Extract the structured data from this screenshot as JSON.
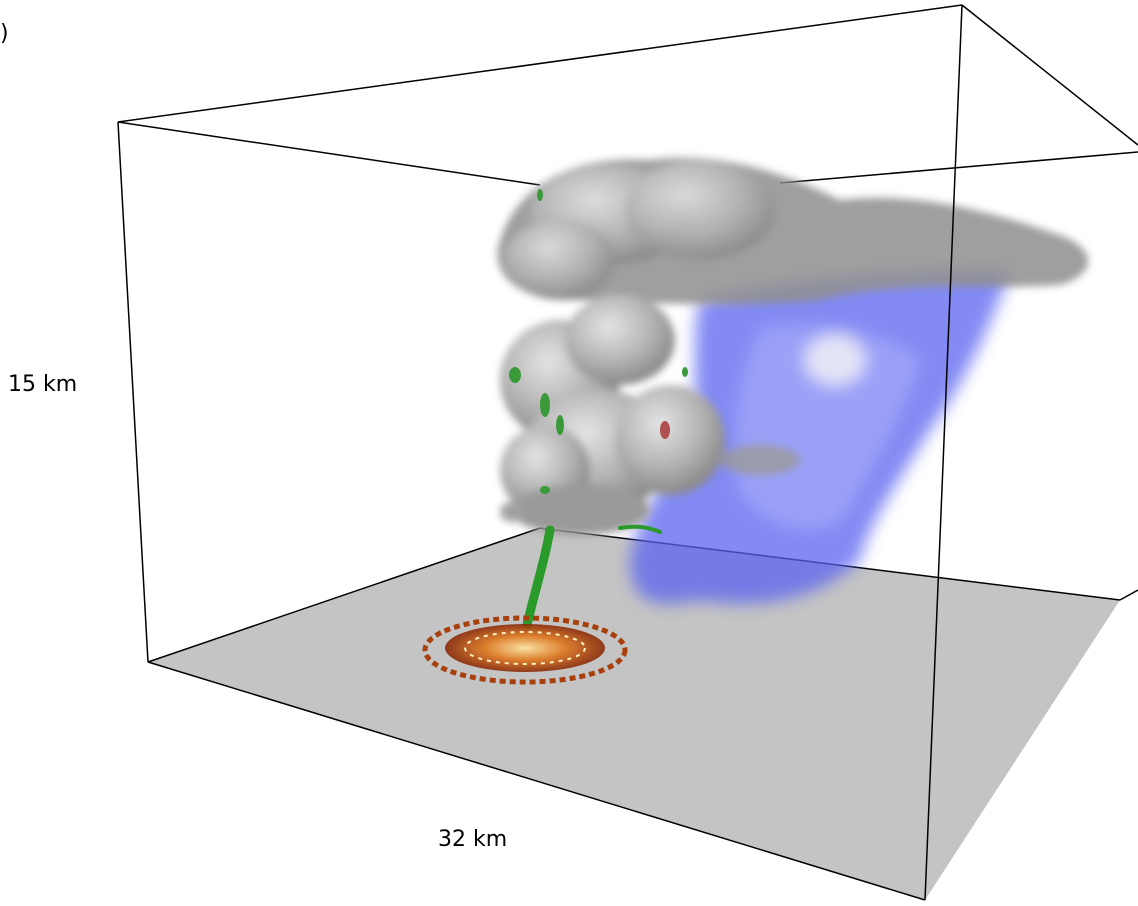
{
  "labels": {
    "corner": ")",
    "height": "15 km",
    "width": "32 km"
  }
}
